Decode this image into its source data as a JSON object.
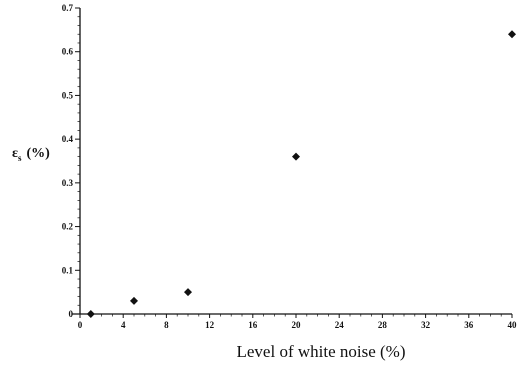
{
  "chart_data": {
    "type": "scatter",
    "title": "",
    "xlabel": "Level of white noise (%)",
    "ylabel": "ε",
    "ylabel_subscript": "s",
    "ylabel_unit": "(%)",
    "xlim": [
      0,
      40
    ],
    "ylim": [
      0,
      0.7
    ],
    "x_ticks": [
      0,
      4,
      8,
      12,
      16,
      20,
      24,
      28,
      32,
      36,
      40
    ],
    "y_ticks": [
      0,
      0.1,
      0.2,
      0.3,
      0.4,
      0.5,
      0.6,
      0.7
    ],
    "y_tick_labels": [
      "0",
      "0.1",
      "0.2",
      "0.3",
      "0.4",
      "0.5",
      "0.6",
      "0.7"
    ],
    "grid": false,
    "legend": "none",
    "marker": "diamond",
    "series": [
      {
        "x": [
          1,
          5,
          10,
          20,
          40
        ],
        "y": [
          0.0,
          0.03,
          0.05,
          0.36,
          0.64
        ]
      }
    ]
  }
}
